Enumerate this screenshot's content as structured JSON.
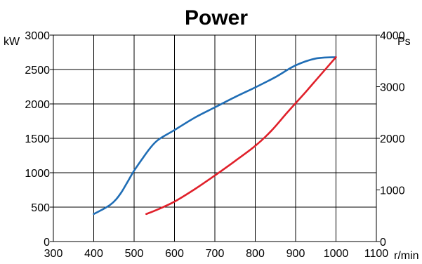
{
  "chart_data": {
    "type": "line",
    "title": "Power",
    "xlabel": "r/min",
    "ylabel": "kW",
    "y2label": "Ps",
    "xlim": [
      300,
      1100
    ],
    "ylim": [
      0,
      3000
    ],
    "y2lim": [
      0,
      4000
    ],
    "x_ticks": [
      300,
      400,
      500,
      600,
      700,
      800,
      900,
      1000,
      1100
    ],
    "y_ticks": [
      0,
      500,
      1000,
      1500,
      2000,
      2500,
      3000
    ],
    "y2_ticks": [
      0,
      1000,
      2000,
      3000,
      4000
    ],
    "grid": true,
    "series": [
      {
        "color": "#1f6db5",
        "x": [
          400,
          420,
          440,
          455,
          470,
          485,
          500,
          520,
          540,
          560,
          600,
          650,
          700,
          750,
          800,
          850,
          900,
          950,
          1000
        ],
        "y": [
          400,
          460,
          530,
          610,
          730,
          880,
          1030,
          1200,
          1360,
          1480,
          1620,
          1800,
          1950,
          2100,
          2240,
          2390,
          2560,
          2660,
          2680
        ]
      },
      {
        "color": "#e0202a",
        "x": [
          530,
          560,
          600,
          650,
          700,
          750,
          800,
          840,
          880,
          920,
          960,
          1000
        ],
        "y": [
          400,
          470,
          580,
          760,
          960,
          1170,
          1390,
          1610,
          1880,
          2140,
          2410,
          2680
        ]
      }
    ]
  }
}
